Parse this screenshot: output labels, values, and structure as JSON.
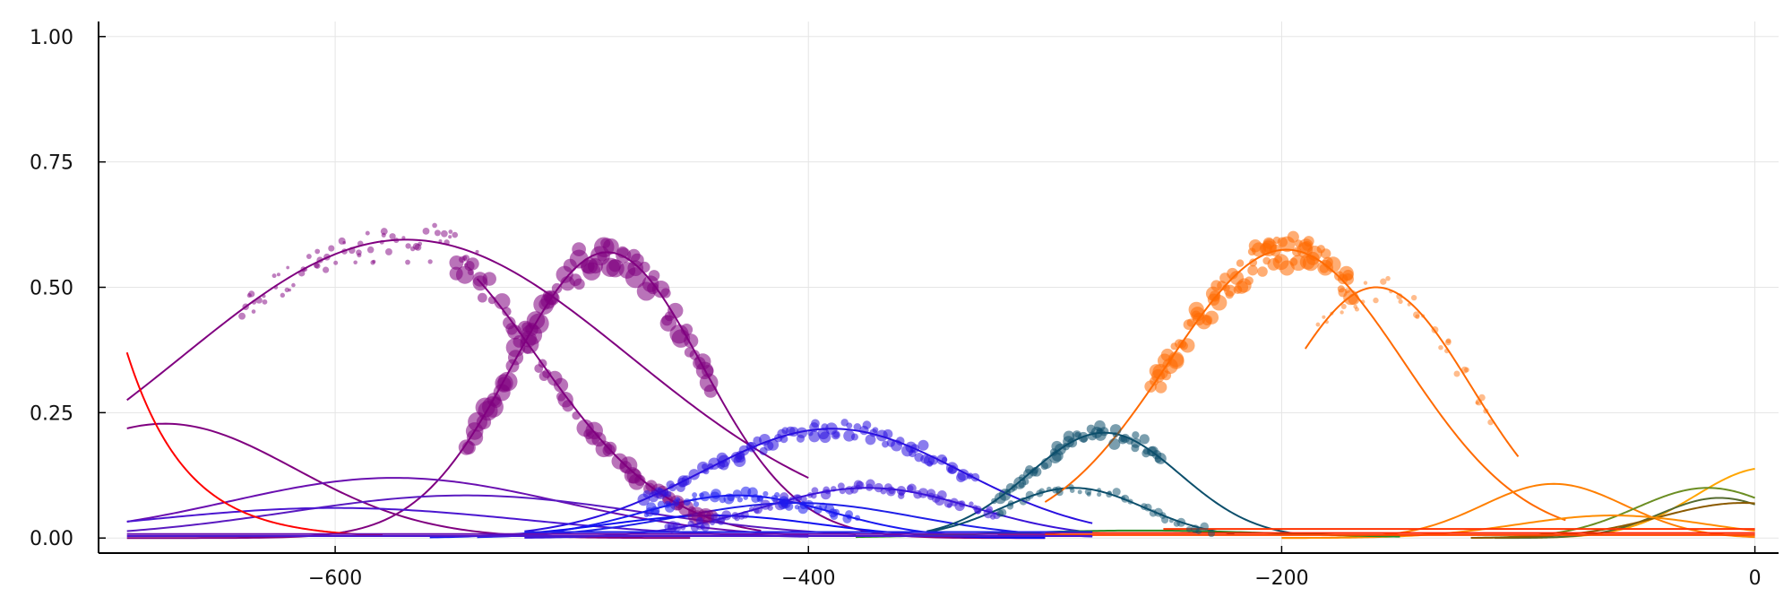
{
  "chart_data": {
    "type": "scatter",
    "title": "",
    "xlabel": "",
    "ylabel": "",
    "xlim": [
      -700,
      10
    ],
    "ylim": [
      -0.03,
      1.03
    ],
    "grid": true,
    "legend": "none",
    "x_ticks": [
      -600,
      -400,
      -200,
      0
    ],
    "x_tick_labels": [
      "−600",
      "−400",
      "−200",
      "0"
    ],
    "y_ticks": [
      0.0,
      0.25,
      0.5,
      0.75,
      1.0
    ],
    "y_tick_labels": [
      "0.00",
      "0.25",
      "0.50",
      "0.75",
      "1.00"
    ],
    "curves": [
      {
        "color": "#800080",
        "kind": "gauss",
        "amp": 0.595,
        "mu": -570,
        "sigma": 95,
        "from": -688,
        "to": -400,
        "scatter": {
          "count": 70,
          "size": 4,
          "x0": -640,
          "x1": -540,
          "alpha": 0.5
        }
      },
      {
        "color": "#800080",
        "kind": "gauss",
        "amp": 0.6,
        "mu": -570,
        "sigma": 55,
        "from": -540,
        "to": -420,
        "scatter": {
          "count": 60,
          "size": 10,
          "x0": -550,
          "x1": -440,
          "alpha": 0.55
        }
      },
      {
        "color": "#800080",
        "kind": "gauss",
        "amp": 0.57,
        "mu": -485,
        "sigma": 40,
        "from": -688,
        "to": -300,
        "scatter": {
          "count": 80,
          "size": 12,
          "x0": -545,
          "x1": -440,
          "alpha": 0.55
        }
      },
      {
        "color": "#800080",
        "kind": "gauss",
        "amp": 0.228,
        "mu": -672,
        "sigma": 55,
        "from": -688,
        "to": -450
      },
      {
        "color": "#6a0fb0",
        "kind": "gauss",
        "amp": 0.12,
        "mu": -575,
        "sigma": 70,
        "from": -688,
        "to": -400
      },
      {
        "color": "#5a1ac0",
        "kind": "gauss",
        "amp": 0.085,
        "mu": -545,
        "sigma": 75,
        "from": -688,
        "to": -380
      },
      {
        "color": "#4b16d0",
        "kind": "gauss",
        "amp": 0.06,
        "mu": -600,
        "sigma": 80,
        "from": -688,
        "to": -400
      },
      {
        "color": "#ff0000",
        "kind": "exp",
        "a": 0.37,
        "x0": -688,
        "k": 0.04,
        "from": -688,
        "to": -580
      },
      {
        "color": "#2a10e0",
        "kind": "gauss",
        "amp": 0.218,
        "mu": -390,
        "sigma": 55,
        "from": -520,
        "to": -280,
        "scatter": {
          "count": 90,
          "size": 7,
          "x0": -470,
          "x1": -330,
          "alpha": 0.55
        }
      },
      {
        "color": "#3a14d8",
        "kind": "gauss",
        "amp": 0.1,
        "mu": -375,
        "sigma": 45,
        "from": -520,
        "to": -280,
        "scatter": {
          "count": 80,
          "size": 6,
          "x0": -460,
          "x1": -320,
          "alpha": 0.55
        }
      },
      {
        "color": "#1a1af0",
        "kind": "gauss",
        "amp": 0.085,
        "mu": -430,
        "sigma": 40,
        "from": -540,
        "to": -300,
        "scatter": {
          "count": 50,
          "size": 6,
          "x0": -470,
          "x1": -380,
          "alpha": 0.55
        }
      },
      {
        "color": "#2020e8",
        "kind": "gauss",
        "amp": 0.07,
        "mu": -405,
        "sigma": 50,
        "from": -540,
        "to": -280
      },
      {
        "color": "#1010f0",
        "kind": "gauss",
        "amp": 0.045,
        "mu": -440,
        "sigma": 45,
        "from": -560,
        "to": -300
      },
      {
        "color": "#0c4f6c",
        "kind": "gauss",
        "amp": 0.21,
        "mu": -275,
        "sigma": 32,
        "from": -350,
        "to": -195,
        "scatter": {
          "count": 55,
          "size": 7,
          "x0": -320,
          "x1": -250,
          "alpha": 0.55
        }
      },
      {
        "color": "#0c4f6c",
        "kind": "gauss",
        "amp": 0.1,
        "mu": -288,
        "sigma": 30,
        "from": -350,
        "to": -220,
        "scatter": {
          "count": 40,
          "size": 5,
          "x0": -320,
          "x1": -230,
          "alpha": 0.5
        }
      },
      {
        "color": "#ff6a00",
        "kind": "gauss",
        "amp": 0.575,
        "mu": -198,
        "sigma": 50,
        "from": -300,
        "to": -80,
        "scatter": {
          "count": 90,
          "size": 9,
          "x0": -255,
          "x1": -170,
          "alpha": 0.55
        }
      },
      {
        "color": "#ff6a00",
        "kind": "gauss",
        "amp": 0.5,
        "mu": -160,
        "sigma": 40,
        "from": -190,
        "to": -100,
        "scatter": {
          "count": 35,
          "size": 4,
          "x0": -185,
          "x1": -110,
          "alpha": 0.45
        }
      },
      {
        "color": "#ff7f00",
        "kind": "gauss",
        "amp": 0.108,
        "mu": -85,
        "sigma": 30,
        "from": -200,
        "to": 0
      },
      {
        "color": "#ffa500",
        "kind": "gauss",
        "amp": 0.14,
        "mu": 5,
        "sigma": 30,
        "from": -100,
        "to": 0
      },
      {
        "color": "#6b8e23",
        "kind": "gauss",
        "amp": 0.1,
        "mu": -20,
        "sigma": 30,
        "from": -120,
        "to": 0
      },
      {
        "color": "#556b2f",
        "kind": "gauss",
        "amp": 0.08,
        "mu": -15,
        "sigma": 25,
        "from": -110,
        "to": 0
      },
      {
        "color": "#8b5a00",
        "kind": "gauss",
        "amp": 0.07,
        "mu": -5,
        "sigma": 35,
        "from": -120,
        "to": 0
      },
      {
        "color": "#ff8c00",
        "kind": "gauss",
        "amp": 0.045,
        "mu": -60,
        "sigma": 40,
        "from": -200,
        "to": 0
      },
      {
        "color": "#228b22",
        "kind": "gauss",
        "amp": 0.015,
        "mu": -260,
        "sigma": 60,
        "from": -380,
        "to": -150
      },
      {
        "color": "#ff2200",
        "kind": "flat",
        "level": 0.01,
        "from": -300,
        "to": 0
      },
      {
        "color": "#ff3300",
        "kind": "flat",
        "level": 0.018,
        "from": -250,
        "to": 0
      },
      {
        "color": "#ff4500",
        "kind": "flat",
        "level": 0.006,
        "from": -320,
        "to": 0
      },
      {
        "color": "#6a0fb0",
        "kind": "flat",
        "level": 0.008,
        "from": -688,
        "to": -300
      },
      {
        "color": "#4b16d0",
        "kind": "flat",
        "level": 0.004,
        "from": -688,
        "to": -280
      },
      {
        "color": "#2020e8",
        "kind": "flat",
        "level": 0.012,
        "from": -520,
        "to": -280
      }
    ]
  }
}
